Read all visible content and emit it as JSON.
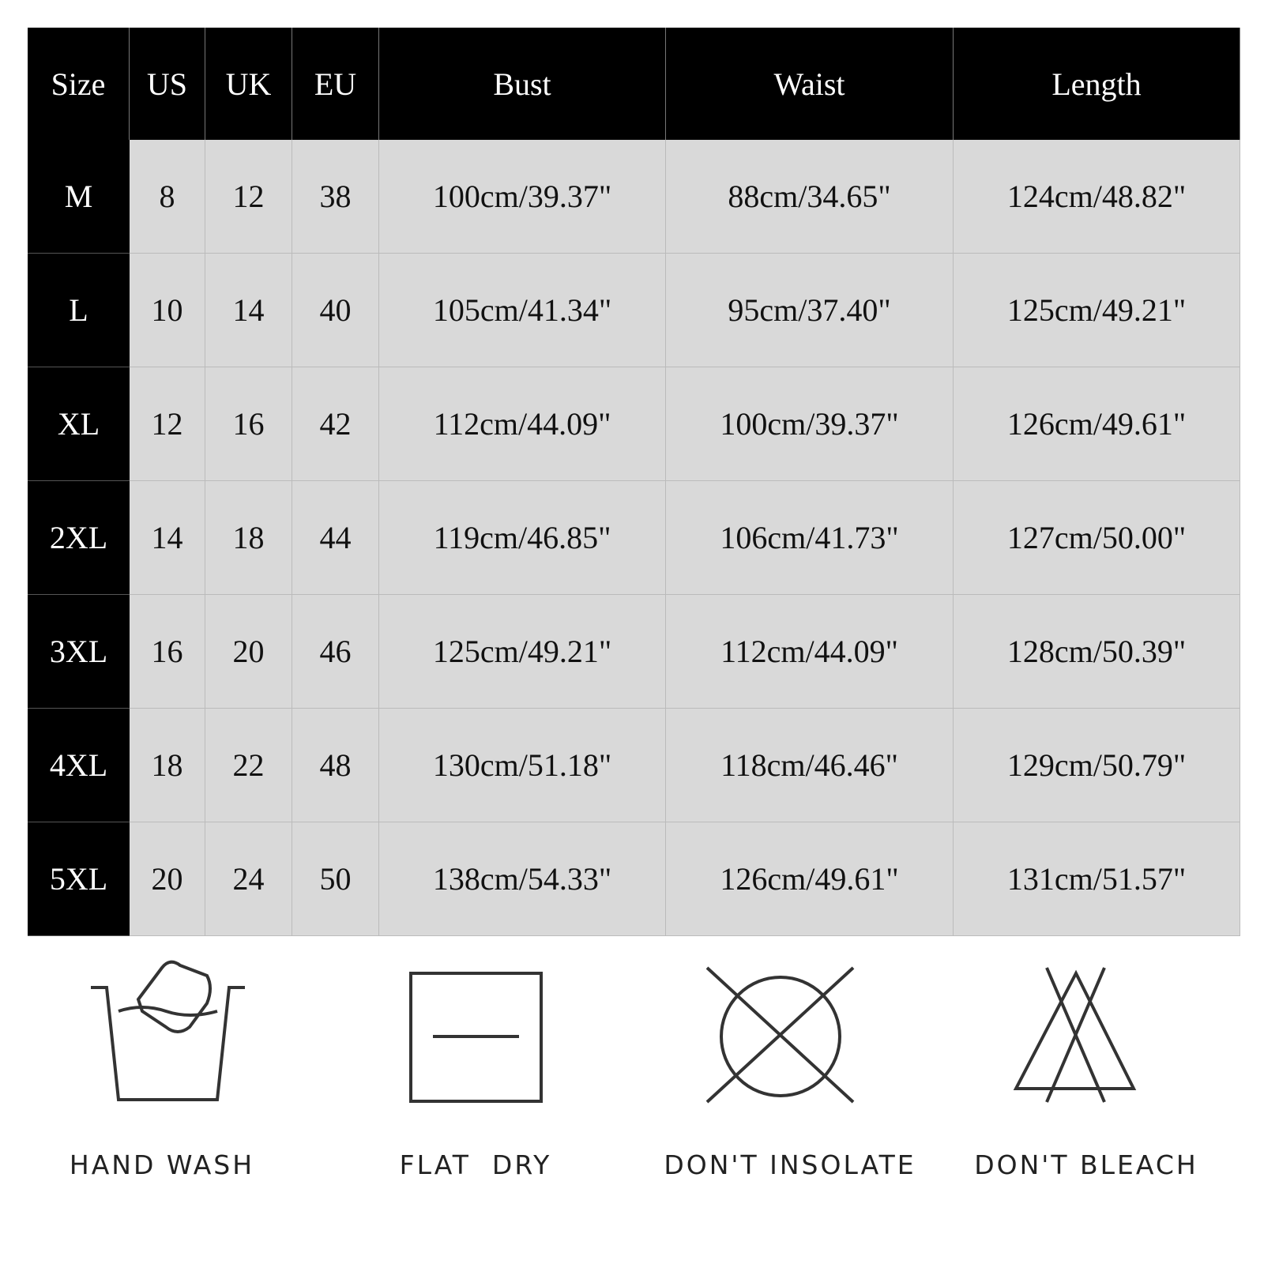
{
  "table": {
    "header": [
      "Size",
      "US",
      "UK",
      "EU",
      "Bust",
      "Waist",
      "Length"
    ],
    "rows": [
      [
        "M",
        "8",
        "12",
        "38",
        "100cm/39.37\"",
        "88cm/34.65\"",
        "124cm/48.82\""
      ],
      [
        "L",
        "10",
        "14",
        "40",
        "105cm/41.34\"",
        "95cm/37.40\"",
        "125cm/49.21\""
      ],
      [
        "XL",
        "12",
        "16",
        "42",
        "112cm/44.09\"",
        "100cm/39.37\"",
        "126cm/49.61\""
      ],
      [
        "2XL",
        "14",
        "18",
        "44",
        "119cm/46.85\"",
        "106cm/41.73\"",
        "127cm/50.00\""
      ],
      [
        "3XL",
        "16",
        "20",
        "46",
        "125cm/49.21\"",
        "112cm/44.09\"",
        "128cm/50.39\""
      ],
      [
        "4XL",
        "18",
        "22",
        "48",
        "130cm/51.18\"",
        "118cm/46.46\"",
        "129cm/50.79\""
      ],
      [
        "5XL",
        "20",
        "24",
        "50",
        "138cm/54.33\"",
        "126cm/49.61\"",
        "131cm/51.57\""
      ]
    ]
  },
  "care_labels": [
    "HAND WASH",
    "FLAT  DRY",
    "DON'T INSOLATE",
    "DON'T BLEACH"
  ]
}
